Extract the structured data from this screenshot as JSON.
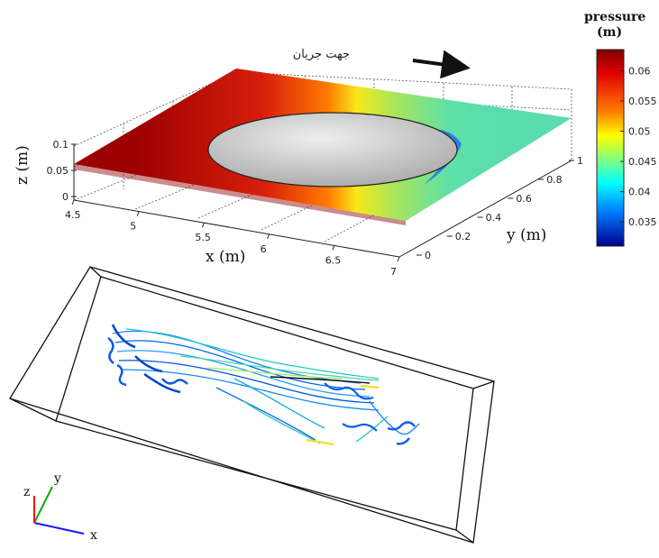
{
  "chart_data": [
    {
      "type": "surface",
      "colorbar": {
        "title_line1": "pressure",
        "title_line2": "(m)",
        "ticks": [
          "0.06",
          "0.055",
          "0.05",
          "0.045",
          "0.04",
          "0.035"
        ],
        "tick_values": [
          0.06,
          0.055,
          0.05,
          0.045,
          0.04,
          0.035
        ],
        "range": [
          0.031,
          0.0635
        ],
        "colormap": "jet"
      },
      "axes": {
        "x": {
          "label": "x (m)",
          "ticks": [
            "4.5",
            "5",
            "5.5",
            "6",
            "6.5",
            "7"
          ],
          "tick_values": [
            4.5,
            5,
            5.5,
            6,
            6.5,
            7
          ],
          "range": [
            4.5,
            7
          ]
        },
        "y": {
          "label": "y (m)",
          "ticks": [
            "0",
            "0.2",
            "0.4",
            "0.6",
            "0.8",
            "1"
          ],
          "tick_values": [
            0,
            0.2,
            0.4,
            0.6,
            0.8,
            1
          ],
          "range": [
            0,
            1
          ]
        },
        "z": {
          "label": "z (m)",
          "ticks": [
            "0",
            "0.05",
            "0.1"
          ],
          "tick_values": [
            0,
            0.05,
            0.1
          ],
          "range": [
            0,
            0.1
          ]
        }
      },
      "grid": true,
      "annotation": {
        "text": "جهت جریان"
      },
      "pressure_profile_x": [
        4.5,
        5,
        5.5,
        6,
        6.5,
        7
      ],
      "pressure_profile_values": [
        0.062,
        0.061,
        0.057,
        0.05,
        0.047,
        0.046
      ]
    },
    {
      "type": "streamlines-3d",
      "axis_triad": {
        "x": "x",
        "y": "y",
        "z": "z"
      }
    }
  ],
  "colors": {
    "axis_x": "#1a1aff",
    "axis_y": "#11aa11",
    "axis_z": "#ee1111",
    "obstacle": "#c8c8c8"
  }
}
